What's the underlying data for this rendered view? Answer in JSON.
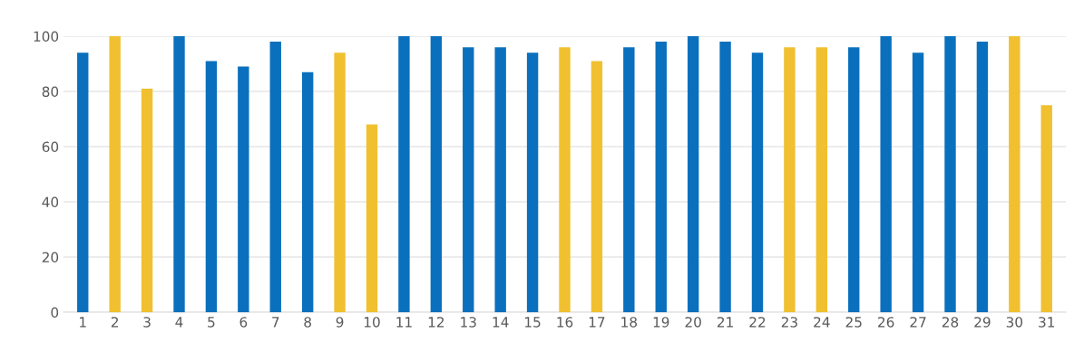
{
  "chart_data": {
    "type": "bar",
    "categories": [
      "1",
      "2",
      "3",
      "4",
      "5",
      "6",
      "7",
      "8",
      "9",
      "10",
      "11",
      "12",
      "13",
      "14",
      "15",
      "16",
      "17",
      "18",
      "19",
      "20",
      "21",
      "22",
      "23",
      "24",
      "25",
      "26",
      "27",
      "28",
      "29",
      "30",
      "31"
    ],
    "values": [
      94,
      100,
      81,
      100,
      91,
      89,
      98,
      87,
      94,
      68,
      100,
      100,
      96,
      96,
      94,
      96,
      91,
      96,
      98,
      100,
      98,
      94,
      96,
      96,
      96,
      100,
      94,
      100,
      98,
      100,
      75
    ],
    "colors": [
      "#0a70bd",
      "#f0c030",
      "#f0c030",
      "#0a70bd",
      "#0a70bd",
      "#0a70bd",
      "#0a70bd",
      "#0a70bd",
      "#f0c030",
      "#f0c030",
      "#0a70bd",
      "#0a70bd",
      "#0a70bd",
      "#0a70bd",
      "#0a70bd",
      "#f0c030",
      "#f0c030",
      "#0a70bd",
      "#0a70bd",
      "#0a70bd",
      "#0a70bd",
      "#0a70bd",
      "#f0c030",
      "#f0c030",
      "#0a70bd",
      "#0a70bd",
      "#0a70bd",
      "#0a70bd",
      "#0a70bd",
      "#f0c030",
      "#f0c030"
    ],
    "ylim": [
      0,
      100
    ],
    "yticks": [
      0,
      20,
      40,
      60,
      80,
      100
    ],
    "grid": "y",
    "legend": false
  }
}
